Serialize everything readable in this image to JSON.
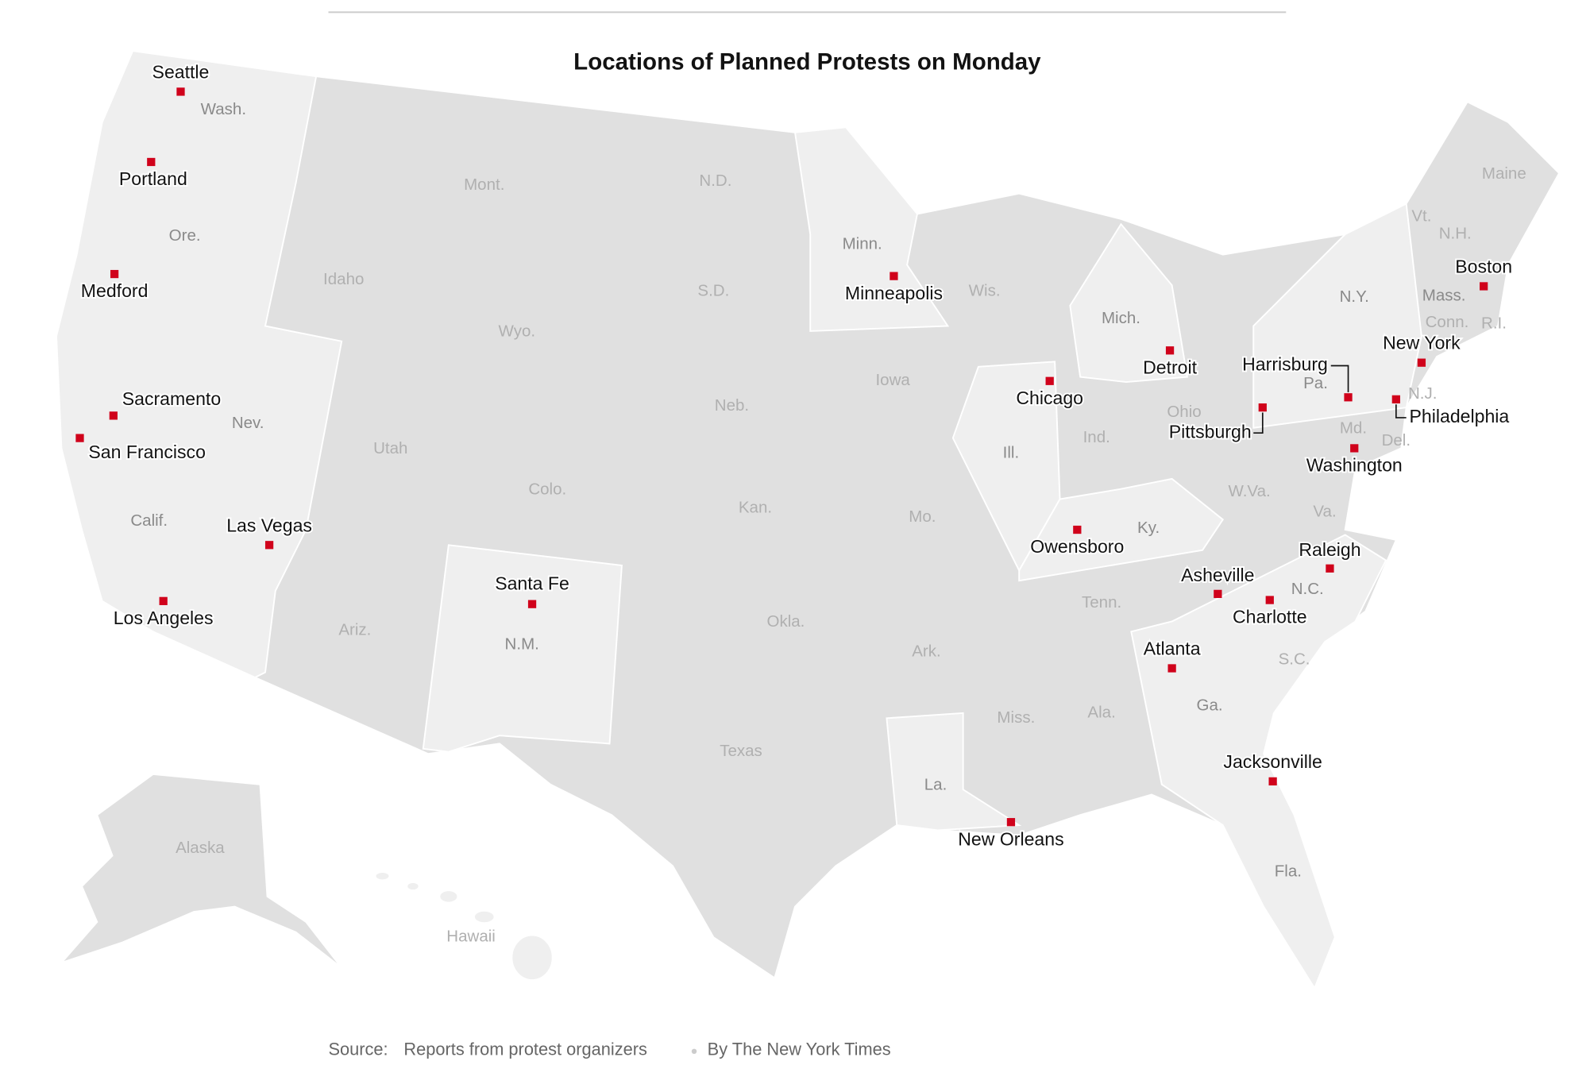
{
  "title": "Locations of Planned Protests on Monday",
  "cities": [
    "Seattle",
    "Portland",
    "Medford",
    "Sacramento",
    "San Francisco",
    "Las Vegas",
    "Los Angeles",
    "Santa Fe",
    "Minneapolis",
    "Chicago",
    "Detroit",
    "Owensboro",
    "Atlanta",
    "Jacksonville",
    "New Orleans",
    "Asheville",
    "Charlotte",
    "Raleigh",
    "Washington",
    "Pittsburgh",
    "Harrisburg",
    "Philadelphia",
    "New York",
    "Boston"
  ],
  "states": [
    "Wash.",
    "Ore.",
    "Calif.",
    "Nev.",
    "Idaho",
    "Mont.",
    "Wyo.",
    "Utah",
    "Ariz.",
    "Colo.",
    "N.M.",
    "N.D.",
    "S.D.",
    "Neb.",
    "Kan.",
    "Okla.",
    "Texas",
    "Minn.",
    "Iowa",
    "Mo.",
    "Ark.",
    "La.",
    "Wis.",
    "Ill.",
    "Mich.",
    "Ind.",
    "Ohio",
    "Ky.",
    "Tenn.",
    "Miss.",
    "Ala.",
    "Ga.",
    "Fla.",
    "S.C.",
    "N.C.",
    "Va.",
    "W.Va.",
    "Pa.",
    "N.Y.",
    "Md.",
    "Del.",
    "N.J.",
    "Conn.",
    "R.I.",
    "Mass.",
    "Vt.",
    "N.H.",
    "Maine",
    "Alaska",
    "Hawaii"
  ],
  "source_label": "Source:",
  "source": "Reports from protest organizers",
  "byline": "By The New York Times"
}
